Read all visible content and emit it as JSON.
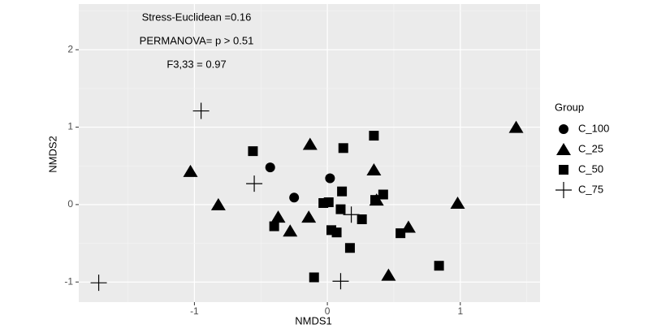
{
  "chart_data": {
    "type": "scatter",
    "x_label": "NMDS1",
    "y_label": "NMDS2",
    "annotations": [
      "Stress-Euclidean =0.16",
      "PERMANOVA= p > 0.51",
      "F3,33 = 0.97"
    ],
    "legend_title": "Group",
    "xlim": [
      -1.87,
      1.6
    ],
    "ylim": [
      -1.26,
      2.59
    ],
    "xticks": [
      -1,
      0,
      1
    ],
    "yticks": [
      -1,
      0,
      1,
      2
    ],
    "grid": true,
    "legend": "right",
    "series": [
      {
        "name": "C_100",
        "shape": "circle",
        "color": "#000000",
        "x": [
          -0.43,
          0.02,
          -0.25
        ],
        "values": [
          0.48,
          0.34,
          0.09
        ]
      },
      {
        "name": "C_25",
        "shape": "triangle",
        "color": "#000000",
        "x": [
          -1.03,
          -0.82,
          -0.13,
          -0.37,
          -0.28,
          -0.14,
          0.35,
          0.37,
          0.61,
          0.46,
          0.98,
          1.42
        ],
        "values": [
          0.43,
          0.0,
          0.78,
          -0.16,
          -0.34,
          -0.16,
          0.45,
          0.06,
          -0.29,
          -0.91,
          0.02,
          1.0
        ]
      },
      {
        "name": "C_50",
        "shape": "square",
        "color": "#000000",
        "x": [
          -0.56,
          0.12,
          0.35,
          -0.4,
          -0.03,
          0.01,
          0.11,
          0.1,
          0.03,
          0.07,
          0.26,
          0.42,
          0.36,
          0.17,
          0.55,
          0.84,
          -0.1
        ],
        "values": [
          0.69,
          0.73,
          0.89,
          -0.28,
          0.02,
          0.03,
          0.17,
          -0.06,
          -0.33,
          -0.36,
          -0.19,
          0.13,
          0.06,
          -0.56,
          -0.37,
          -0.79,
          -0.94
        ]
      },
      {
        "name": "C_75",
        "shape": "plus",
        "color": "#000000",
        "x": [
          -0.95,
          -0.55,
          -1.72,
          0.1,
          0.18
        ],
        "values": [
          1.21,
          0.27,
          -1.01,
          -0.99,
          -0.13
        ]
      }
    ]
  }
}
